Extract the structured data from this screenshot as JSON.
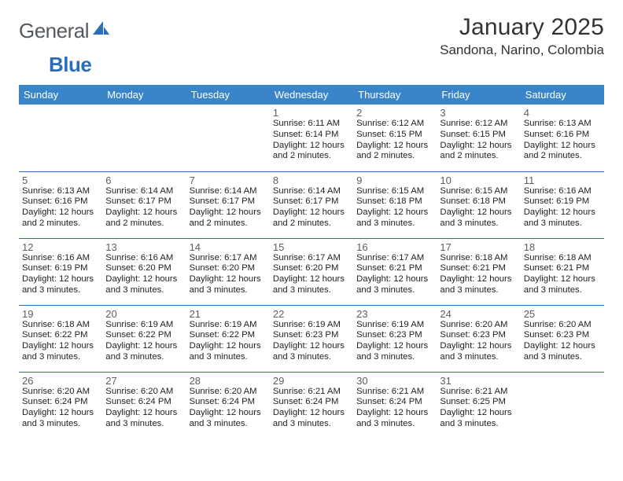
{
  "logo": {
    "text_gray": "General",
    "text_blue": "Blue"
  },
  "title": "January 2025",
  "location": "Sandona, Narino, Colombia",
  "day_headers": [
    "Sunday",
    "Monday",
    "Tuesday",
    "Wednesday",
    "Thursday",
    "Friday",
    "Saturday"
  ],
  "colors": {
    "header_bg": "#3a85c9",
    "header_text": "#ffffff",
    "border": "#2a6db8",
    "logo_gray": "#555a5f",
    "logo_blue": "#2a6db8",
    "body_text": "#222222",
    "daynum_text": "#5a5f64",
    "background": "#ffffff"
  },
  "typography": {
    "title_fontsize": 30,
    "location_fontsize": 17,
    "header_fontsize": 13,
    "daynum_fontsize": 13,
    "info_fontsize": 11.3,
    "font_family": "Arial"
  },
  "weeks": [
    [
      null,
      null,
      null,
      {
        "n": "1",
        "sr": "6:11 AM",
        "ss": "6:14 PM",
        "dl": "12 hours and 2 minutes."
      },
      {
        "n": "2",
        "sr": "6:12 AM",
        "ss": "6:15 PM",
        "dl": "12 hours and 2 minutes."
      },
      {
        "n": "3",
        "sr": "6:12 AM",
        "ss": "6:15 PM",
        "dl": "12 hours and 2 minutes."
      },
      {
        "n": "4",
        "sr": "6:13 AM",
        "ss": "6:16 PM",
        "dl": "12 hours and 2 minutes."
      }
    ],
    [
      {
        "n": "5",
        "sr": "6:13 AM",
        "ss": "6:16 PM",
        "dl": "12 hours and 2 minutes."
      },
      {
        "n": "6",
        "sr": "6:14 AM",
        "ss": "6:17 PM",
        "dl": "12 hours and 2 minutes."
      },
      {
        "n": "7",
        "sr": "6:14 AM",
        "ss": "6:17 PM",
        "dl": "12 hours and 2 minutes."
      },
      {
        "n": "8",
        "sr": "6:14 AM",
        "ss": "6:17 PM",
        "dl": "12 hours and 2 minutes."
      },
      {
        "n": "9",
        "sr": "6:15 AM",
        "ss": "6:18 PM",
        "dl": "12 hours and 3 minutes."
      },
      {
        "n": "10",
        "sr": "6:15 AM",
        "ss": "6:18 PM",
        "dl": "12 hours and 3 minutes."
      },
      {
        "n": "11",
        "sr": "6:16 AM",
        "ss": "6:19 PM",
        "dl": "12 hours and 3 minutes."
      }
    ],
    [
      {
        "n": "12",
        "sr": "6:16 AM",
        "ss": "6:19 PM",
        "dl": "12 hours and 3 minutes."
      },
      {
        "n": "13",
        "sr": "6:16 AM",
        "ss": "6:20 PM",
        "dl": "12 hours and 3 minutes."
      },
      {
        "n": "14",
        "sr": "6:17 AM",
        "ss": "6:20 PM",
        "dl": "12 hours and 3 minutes."
      },
      {
        "n": "15",
        "sr": "6:17 AM",
        "ss": "6:20 PM",
        "dl": "12 hours and 3 minutes."
      },
      {
        "n": "16",
        "sr": "6:17 AM",
        "ss": "6:21 PM",
        "dl": "12 hours and 3 minutes."
      },
      {
        "n": "17",
        "sr": "6:18 AM",
        "ss": "6:21 PM",
        "dl": "12 hours and 3 minutes."
      },
      {
        "n": "18",
        "sr": "6:18 AM",
        "ss": "6:21 PM",
        "dl": "12 hours and 3 minutes."
      }
    ],
    [
      {
        "n": "19",
        "sr": "6:18 AM",
        "ss": "6:22 PM",
        "dl": "12 hours and 3 minutes."
      },
      {
        "n": "20",
        "sr": "6:19 AM",
        "ss": "6:22 PM",
        "dl": "12 hours and 3 minutes."
      },
      {
        "n": "21",
        "sr": "6:19 AM",
        "ss": "6:22 PM",
        "dl": "12 hours and 3 minutes."
      },
      {
        "n": "22",
        "sr": "6:19 AM",
        "ss": "6:23 PM",
        "dl": "12 hours and 3 minutes."
      },
      {
        "n": "23",
        "sr": "6:19 AM",
        "ss": "6:23 PM",
        "dl": "12 hours and 3 minutes."
      },
      {
        "n": "24",
        "sr": "6:20 AM",
        "ss": "6:23 PM",
        "dl": "12 hours and 3 minutes."
      },
      {
        "n": "25",
        "sr": "6:20 AM",
        "ss": "6:23 PM",
        "dl": "12 hours and 3 minutes."
      }
    ],
    [
      {
        "n": "26",
        "sr": "6:20 AM",
        "ss": "6:24 PM",
        "dl": "12 hours and 3 minutes."
      },
      {
        "n": "27",
        "sr": "6:20 AM",
        "ss": "6:24 PM",
        "dl": "12 hours and 3 minutes."
      },
      {
        "n": "28",
        "sr": "6:20 AM",
        "ss": "6:24 PM",
        "dl": "12 hours and 3 minutes."
      },
      {
        "n": "29",
        "sr": "6:21 AM",
        "ss": "6:24 PM",
        "dl": "12 hours and 3 minutes."
      },
      {
        "n": "30",
        "sr": "6:21 AM",
        "ss": "6:24 PM",
        "dl": "12 hours and 3 minutes."
      },
      {
        "n": "31",
        "sr": "6:21 AM",
        "ss": "6:25 PM",
        "dl": "12 hours and 3 minutes."
      },
      null
    ]
  ],
  "labels": {
    "sunrise": "Sunrise: ",
    "sunset": "Sunset: ",
    "daylight": "Daylight: "
  }
}
